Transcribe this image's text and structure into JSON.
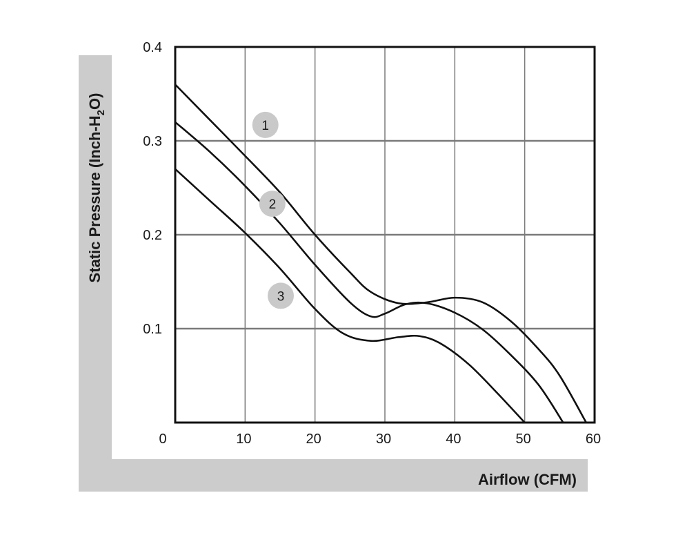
{
  "chart_data": {
    "type": "line",
    "xlabel": "Airflow (CFM)",
    "ylabel": {
      "prefix": "Static Pressure (Inch-H",
      "subscript": "2",
      "suffix": "O)"
    },
    "xlim": [
      0,
      60
    ],
    "ylim": [
      0,
      0.4
    ],
    "xticks": [
      0,
      10,
      20,
      30,
      40,
      50,
      60
    ],
    "yticks": [
      0.1,
      0.2,
      0.3,
      0.4
    ],
    "xtick_labels": [
      "0",
      "10",
      "20",
      "30",
      "40",
      "50",
      "60"
    ],
    "ytick_labels": [
      "0.1",
      "0.2",
      "0.3",
      "0.4"
    ],
    "grid": true,
    "series": [
      {
        "name": "1",
        "label_pos": [
          12.9,
          0.317
        ],
        "x": [
          0,
          5,
          10,
          15,
          20,
          25,
          28,
          32,
          36,
          40,
          44,
          48,
          52,
          55,
          58.8
        ],
        "y": [
          0.36,
          0.322,
          0.284,
          0.245,
          0.2,
          0.16,
          0.139,
          0.127,
          0.128,
          0.133,
          0.128,
          0.108,
          0.078,
          0.05,
          0.0
        ]
      },
      {
        "name": "2",
        "label_pos": [
          13.9,
          0.233
        ],
        "x": [
          0,
          5,
          10,
          15,
          20,
          25,
          28,
          30,
          33,
          36,
          40,
          44,
          48,
          52,
          55.5
        ],
        "y": [
          0.32,
          0.288,
          0.252,
          0.212,
          0.168,
          0.128,
          0.113,
          0.116,
          0.126,
          0.127,
          0.117,
          0.099,
          0.072,
          0.04,
          0.0
        ]
      },
      {
        "name": "3",
        "label_pos": [
          15.1,
          0.135
        ],
        "x": [
          0,
          5,
          10,
          15,
          20,
          24,
          28,
          32,
          35,
          38,
          42,
          46,
          50
        ],
        "y": [
          0.27,
          0.236,
          0.202,
          0.164,
          0.121,
          0.095,
          0.087,
          0.091,
          0.092,
          0.084,
          0.062,
          0.032,
          0.0
        ]
      }
    ]
  }
}
